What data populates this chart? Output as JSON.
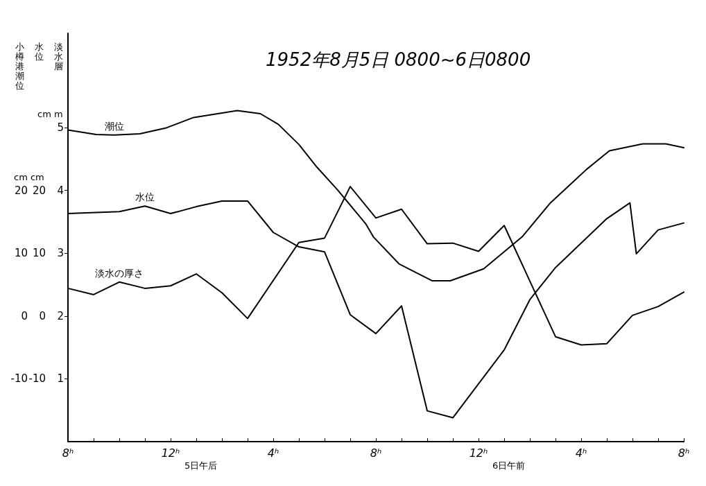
{
  "chart_data": {
    "type": "line",
    "title": "1952年8月5日 0800~6日0800",
    "ylabel": "淡水層",
    "y2label": "水位",
    "y3label": "小樽港潮位",
    "annotations": [
      "cm m",
      "cm cm",
      "5日午后",
      "6日午前"
    ],
    "xlim": [
      "1952-08-05T08:00",
      "1952-08-06T08:00"
    ],
    "xticks": [
      {
        "value": "1952-08-05T08:00",
        "label": "8ʰ"
      },
      {
        "value": "1952-08-05T09:00",
        "label": null
      },
      {
        "value": "1952-08-05T10:00",
        "label": null
      },
      {
        "value": "1952-08-05T11:00",
        "label": null
      },
      {
        "value": "1952-08-05T12:00",
        "label": "12ʰ"
      },
      {
        "value": "1952-08-05T13:00",
        "label": null
      },
      {
        "value": "1952-08-05T14:00",
        "label": null
      },
      {
        "value": "1952-08-05T15:00",
        "label": null
      },
      {
        "value": "1952-08-05T16:00",
        "label": "4ʰ"
      },
      {
        "value": "1952-08-05T17:00",
        "label": null
      },
      {
        "value": "1952-08-05T18:00",
        "label": null
      },
      {
        "value": "1952-08-05T19:00",
        "label": null
      },
      {
        "value": "1952-08-05T20:00",
        "label": "8ʰ"
      },
      {
        "value": "1952-08-05T21:00",
        "label": null
      },
      {
        "value": "1952-08-05T22:00",
        "label": null
      },
      {
        "value": "1952-08-05T23:00",
        "label": null
      },
      {
        "value": "1952-08-06T00:00",
        "label": "12ʰ"
      },
      {
        "value": "1952-08-06T01:00",
        "label": null
      },
      {
        "value": "1952-08-06T02:00",
        "label": null
      },
      {
        "value": "1952-08-06T03:00",
        "label": null
      },
      {
        "value": "1952-08-06T04:00",
        "label": "4ʰ"
      },
      {
        "value": "1952-08-06T05:00",
        "label": null
      },
      {
        "value": "1952-08-06T06:00",
        "label": null
      },
      {
        "value": "1952-08-06T07:00",
        "label": null
      },
      {
        "value": "1952-08-06T08:00",
        "label": "8ʰ"
      }
    ],
    "ylim": [
      0,
      6.5
    ],
    "yticks": [
      1,
      2,
      3,
      4,
      5
    ],
    "y2lim": [
      -20,
      45
    ],
    "y2ticks": [
      -10,
      0,
      10,
      20
    ],
    "y3lim": [
      -20,
      45
    ],
    "y3ticks": [
      -10,
      0,
      10,
      20
    ],
    "grid": false,
    "legend": false,
    "marker": "none",
    "line_style": "solid",
    "series": [
      {
        "name": "潮位",
        "color": "#000000",
        "x": [
          "1952-08-05T08:00",
          "1952-08-05T09:06",
          "1952-08-05T09:48",
          "1952-08-05T10:48",
          "1952-08-05T11:48",
          "1952-08-05T12:54",
          "1952-08-05T14:36",
          "1952-08-05T15:30",
          "1952-08-05T16:12",
          "1952-08-05T17:00",
          "1952-08-05T17:42",
          "1952-08-05T18:30",
          "1952-08-05T19:36",
          "1952-08-05T19:54",
          "1952-08-05T20:54",
          "1952-08-05T22:12",
          "1952-08-05T22:54",
          "1952-08-06T00:12",
          "1952-08-06T01:42",
          "1952-08-06T02:48",
          "1952-08-06T04:12",
          "1952-08-06T05:06",
          "1952-08-06T06:24",
          "1952-08-06T07:18",
          "1952-08-06T08:00"
        ],
        "values": [
          4.96,
          4.89,
          4.88,
          4.9,
          4.99,
          5.16,
          5.27,
          5.22,
          5.05,
          4.73,
          4.37,
          4.01,
          3.47,
          3.26,
          2.83,
          2.56,
          2.56,
          2.75,
          3.26,
          3.8,
          4.33,
          4.63,
          4.74,
          4.74,
          4.68
        ]
      },
      {
        "name": "水位",
        "color": "#000000",
        "x": [
          "1952-08-05T08:00",
          "1952-08-05T10:00",
          "1952-08-05T11:00",
          "1952-08-05T12:00",
          "1952-08-05T13:00",
          "1952-08-05T14:00",
          "1952-08-05T15:00",
          "1952-08-05T16:00",
          "1952-08-05T17:00",
          "1952-08-05T18:00",
          "1952-08-05T19:00",
          "1952-08-05T20:00",
          "1952-08-05T21:00",
          "1952-08-05T22:00",
          "1952-08-05T23:00",
          "1952-08-06T00:00",
          "1952-08-06T01:00",
          "1952-08-06T02:00",
          "1952-08-06T03:00",
          "1952-08-06T05:00",
          "1952-08-06T05:54",
          "1952-08-06T06:09",
          "1952-08-06T07:00",
          "1952-08-06T08:00"
        ],
        "values": [
          3.63,
          3.66,
          3.75,
          3.63,
          3.74,
          3.83,
          3.83,
          3.33,
          3.1,
          3.02,
          2.02,
          1.72,
          2.16,
          0.49,
          0.38,
          0.92,
          1.46,
          2.26,
          2.77,
          3.55,
          3.8,
          2.99,
          3.37,
          3.48
        ]
      },
      {
        "name": "淡水の厚さ",
        "color": "#000000",
        "x": [
          "1952-08-05T08:00",
          "1952-08-05T09:00",
          "1952-08-05T10:00",
          "1952-08-05T11:00",
          "1952-08-05T12:00",
          "1952-08-05T13:00",
          "1952-08-05T14:00",
          "1952-08-05T15:00",
          "1952-08-05T17:00",
          "1952-08-05T18:00",
          "1952-08-05T19:00",
          "1952-08-05T20:00",
          "1952-08-05T21:00",
          "1952-08-05T22:00",
          "1952-08-05T23:00",
          "1952-08-06T00:00",
          "1952-08-06T01:00",
          "1952-08-06T03:00",
          "1952-08-06T04:00",
          "1952-08-06T05:00",
          "1952-08-06T06:00",
          "1952-08-06T07:00",
          "1952-08-06T08:00"
        ],
        "values": [
          2.44,
          2.34,
          2.54,
          2.44,
          2.48,
          2.67,
          2.37,
          1.96,
          3.17,
          3.24,
          4.06,
          3.56,
          3.7,
          3.15,
          3.16,
          3.03,
          3.44,
          1.67,
          1.54,
          1.56,
          2.01,
          2.15,
          2.38
        ]
      }
    ]
  }
}
